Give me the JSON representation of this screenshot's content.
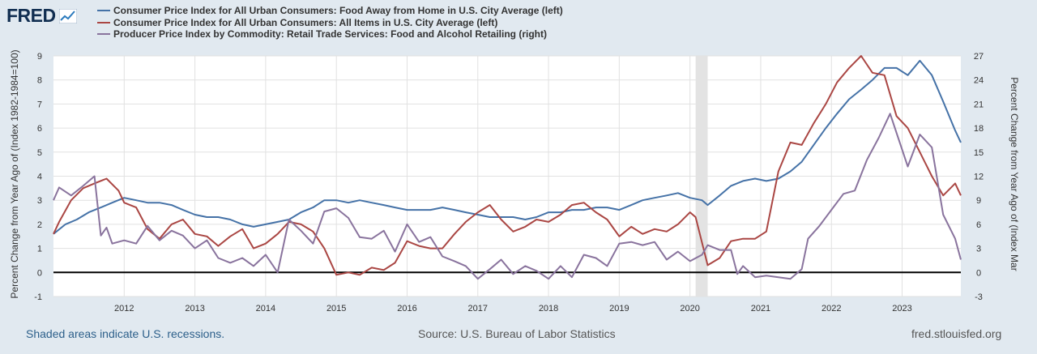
{
  "header": {
    "logo_text": "FRED",
    "logo_icon": "trend-chart-icon"
  },
  "legend": [
    {
      "label": "Consumer Price Index for All Urban Consumers: Food Away from Home in U.S. City Average (left)",
      "color": "#4572a7"
    },
    {
      "label": "Consumer Price Index for All Urban Consumers: All Items in U.S. City Average (left)",
      "color": "#aa4643"
    },
    {
      "label": "Producer Price Index by Commodity: Retail Trade Services: Food and Alcohol Retailing (right)",
      "color": "#89739d"
    }
  ],
  "axes": {
    "left_label": "Percent Change from Year Ago of (Index 1982-1984=100)",
    "right_label": "Percent Change from Year Ago of (Index Mar"
  },
  "footer": {
    "recession_note": "Shaded areas indicate U.S. recessions.",
    "source": "Source: U.S. Bureau of Labor Statistics",
    "link": "fred.stlouisfed.org"
  },
  "chart_data": {
    "type": "line",
    "x_range": [
      2011.0,
      2023.83
    ],
    "x_ticks": [
      "2012",
      "2013",
      "2014",
      "2015",
      "2016",
      "2017",
      "2018",
      "2019",
      "2020",
      "2021",
      "2022",
      "2023"
    ],
    "x_tick_values": [
      2012,
      2013,
      2014,
      2015,
      2016,
      2017,
      2018,
      2019,
      2020,
      2021,
      2022,
      2023
    ],
    "ylim_left": [
      -1,
      9
    ],
    "left_ticks": [
      "-1",
      "0",
      "1",
      "2",
      "3",
      "4",
      "5",
      "6",
      "7",
      "8",
      "9"
    ],
    "ylim_right": [
      -3,
      27
    ],
    "right_ticks": [
      "-3",
      "0",
      "3",
      "6",
      "9",
      "12",
      "15",
      "18",
      "21",
      "24",
      "27"
    ],
    "recessions": [
      [
        2020.08,
        2020.25
      ]
    ],
    "zero_line": 0,
    "series": [
      {
        "name": "Food Away from Home (left)",
        "axis": "left",
        "color": "#4572a7",
        "points": [
          [
            2011.0,
            1.6
          ],
          [
            2011.17,
            2.0
          ],
          [
            2011.33,
            2.2
          ],
          [
            2011.5,
            2.5
          ],
          [
            2011.67,
            2.7
          ],
          [
            2011.83,
            2.9
          ],
          [
            2012.0,
            3.1
          ],
          [
            2012.17,
            3.0
          ],
          [
            2012.33,
            2.9
          ],
          [
            2012.5,
            2.9
          ],
          [
            2012.67,
            2.8
          ],
          [
            2012.83,
            2.6
          ],
          [
            2013.0,
            2.4
          ],
          [
            2013.17,
            2.3
          ],
          [
            2013.33,
            2.3
          ],
          [
            2013.5,
            2.2
          ],
          [
            2013.67,
            2.0
          ],
          [
            2013.83,
            1.9
          ],
          [
            2014.0,
            2.0
          ],
          [
            2014.17,
            2.1
          ],
          [
            2014.33,
            2.2
          ],
          [
            2014.5,
            2.5
          ],
          [
            2014.67,
            2.7
          ],
          [
            2014.83,
            3.0
          ],
          [
            2015.0,
            3.0
          ],
          [
            2015.17,
            2.9
          ],
          [
            2015.33,
            3.0
          ],
          [
            2015.5,
            2.9
          ],
          [
            2015.67,
            2.8
          ],
          [
            2015.83,
            2.7
          ],
          [
            2016.0,
            2.6
          ],
          [
            2016.17,
            2.6
          ],
          [
            2016.33,
            2.6
          ],
          [
            2016.5,
            2.7
          ],
          [
            2016.67,
            2.6
          ],
          [
            2016.83,
            2.5
          ],
          [
            2017.0,
            2.4
          ],
          [
            2017.17,
            2.3
          ],
          [
            2017.33,
            2.3
          ],
          [
            2017.5,
            2.3
          ],
          [
            2017.67,
            2.2
          ],
          [
            2017.83,
            2.3
          ],
          [
            2018.0,
            2.5
          ],
          [
            2018.17,
            2.5
          ],
          [
            2018.33,
            2.6
          ],
          [
            2018.5,
            2.6
          ],
          [
            2018.67,
            2.7
          ],
          [
            2018.83,
            2.7
          ],
          [
            2019.0,
            2.6
          ],
          [
            2019.17,
            2.8
          ],
          [
            2019.33,
            3.0
          ],
          [
            2019.5,
            3.1
          ],
          [
            2019.67,
            3.2
          ],
          [
            2019.83,
            3.3
          ],
          [
            2020.0,
            3.1
          ],
          [
            2020.17,
            3.0
          ],
          [
            2020.25,
            2.8
          ],
          [
            2020.42,
            3.2
          ],
          [
            2020.58,
            3.6
          ],
          [
            2020.75,
            3.8
          ],
          [
            2020.92,
            3.9
          ],
          [
            2021.08,
            3.8
          ],
          [
            2021.25,
            3.9
          ],
          [
            2021.42,
            4.2
          ],
          [
            2021.58,
            4.6
          ],
          [
            2021.75,
            5.3
          ],
          [
            2021.92,
            6.0
          ],
          [
            2022.08,
            6.6
          ],
          [
            2022.25,
            7.2
          ],
          [
            2022.42,
            7.6
          ],
          [
            2022.58,
            8.0
          ],
          [
            2022.75,
            8.5
          ],
          [
            2022.92,
            8.5
          ],
          [
            2023.08,
            8.2
          ],
          [
            2023.25,
            8.8
          ],
          [
            2023.42,
            8.2
          ],
          [
            2023.58,
            7.1
          ],
          [
            2023.75,
            5.9
          ],
          [
            2023.83,
            5.4
          ]
        ]
      },
      {
        "name": "All Items CPI (left)",
        "axis": "left",
        "color": "#aa4643",
        "points": [
          [
            2011.0,
            1.6
          ],
          [
            2011.08,
            2.1
          ],
          [
            2011.25,
            3.0
          ],
          [
            2011.42,
            3.5
          ],
          [
            2011.58,
            3.7
          ],
          [
            2011.75,
            3.9
          ],
          [
            2011.92,
            3.4
          ],
          [
            2012.0,
            2.9
          ],
          [
            2012.17,
            2.7
          ],
          [
            2012.33,
            1.8
          ],
          [
            2012.5,
            1.4
          ],
          [
            2012.67,
            2.0
          ],
          [
            2012.83,
            2.2
          ],
          [
            2013.0,
            1.6
          ],
          [
            2013.17,
            1.5
          ],
          [
            2013.33,
            1.1
          ],
          [
            2013.5,
            1.5
          ],
          [
            2013.67,
            1.8
          ],
          [
            2013.83,
            1.0
          ],
          [
            2014.0,
            1.2
          ],
          [
            2014.17,
            1.6
          ],
          [
            2014.33,
            2.1
          ],
          [
            2014.5,
            2.0
          ],
          [
            2014.67,
            1.7
          ],
          [
            2014.83,
            1.0
          ],
          [
            2015.0,
            -0.1
          ],
          [
            2015.17,
            0.0
          ],
          [
            2015.33,
            -0.1
          ],
          [
            2015.5,
            0.2
          ],
          [
            2015.67,
            0.1
          ],
          [
            2015.83,
            0.4
          ],
          [
            2016.0,
            1.3
          ],
          [
            2016.17,
            1.1
          ],
          [
            2016.33,
            1.0
          ],
          [
            2016.5,
            1.0
          ],
          [
            2016.67,
            1.6
          ],
          [
            2016.83,
            2.1
          ],
          [
            2017.0,
            2.5
          ],
          [
            2017.17,
            2.8
          ],
          [
            2017.33,
            2.2
          ],
          [
            2017.5,
            1.7
          ],
          [
            2017.67,
            1.9
          ],
          [
            2017.83,
            2.2
          ],
          [
            2018.0,
            2.1
          ],
          [
            2018.17,
            2.4
          ],
          [
            2018.33,
            2.8
          ],
          [
            2018.5,
            2.9
          ],
          [
            2018.67,
            2.5
          ],
          [
            2018.83,
            2.2
          ],
          [
            2019.0,
            1.5
          ],
          [
            2019.17,
            1.9
          ],
          [
            2019.33,
            1.6
          ],
          [
            2019.5,
            1.8
          ],
          [
            2019.67,
            1.7
          ],
          [
            2019.83,
            2.0
          ],
          [
            2020.0,
            2.5
          ],
          [
            2020.08,
            2.3
          ],
          [
            2020.25,
            0.3
          ],
          [
            2020.42,
            0.6
          ],
          [
            2020.58,
            1.3
          ],
          [
            2020.75,
            1.4
          ],
          [
            2020.92,
            1.4
          ],
          [
            2021.08,
            1.7
          ],
          [
            2021.25,
            4.2
          ],
          [
            2021.42,
            5.4
          ],
          [
            2021.58,
            5.3
          ],
          [
            2021.75,
            6.2
          ],
          [
            2021.92,
            7.0
          ],
          [
            2022.08,
            7.9
          ],
          [
            2022.25,
            8.5
          ],
          [
            2022.42,
            9.0
          ],
          [
            2022.58,
            8.3
          ],
          [
            2022.75,
            8.2
          ],
          [
            2022.92,
            6.5
          ],
          [
            2023.08,
            6.0
          ],
          [
            2023.25,
            5.0
          ],
          [
            2023.42,
            4.0
          ],
          [
            2023.58,
            3.2
          ],
          [
            2023.75,
            3.7
          ],
          [
            2023.83,
            3.2
          ]
        ]
      },
      {
        "name": "PPI Food and Alcohol Retailing (right)",
        "axis": "right",
        "color": "#89739d",
        "points": [
          [
            2011.0,
            9.0
          ],
          [
            2011.08,
            10.6
          ],
          [
            2011.25,
            9.6
          ],
          [
            2011.42,
            10.8
          ],
          [
            2011.58,
            12.0
          ],
          [
            2011.67,
            4.6
          ],
          [
            2011.75,
            5.6
          ],
          [
            2011.83,
            3.6
          ],
          [
            2012.0,
            4.0
          ],
          [
            2012.17,
            3.6
          ],
          [
            2012.33,
            5.8
          ],
          [
            2012.5,
            4.0
          ],
          [
            2012.67,
            5.2
          ],
          [
            2012.83,
            4.6
          ],
          [
            2013.0,
            3.0
          ],
          [
            2013.17,
            4.0
          ],
          [
            2013.33,
            1.8
          ],
          [
            2013.5,
            1.2
          ],
          [
            2013.67,
            1.8
          ],
          [
            2013.83,
            0.8
          ],
          [
            2014.0,
            2.2
          ],
          [
            2014.17,
            0.0
          ],
          [
            2014.33,
            6.6
          ],
          [
            2014.5,
            5.2
          ],
          [
            2014.67,
            3.6
          ],
          [
            2014.83,
            7.6
          ],
          [
            2015.0,
            8.0
          ],
          [
            2015.17,
            6.8
          ],
          [
            2015.33,
            4.4
          ],
          [
            2015.5,
            4.2
          ],
          [
            2015.67,
            5.2
          ],
          [
            2015.83,
            2.6
          ],
          [
            2016.0,
            6.0
          ],
          [
            2016.17,
            3.8
          ],
          [
            2016.33,
            4.4
          ],
          [
            2016.5,
            2.0
          ],
          [
            2016.67,
            1.4
          ],
          [
            2016.83,
            0.8
          ],
          [
            2017.0,
            -0.8
          ],
          [
            2017.17,
            0.4
          ],
          [
            2017.33,
            1.6
          ],
          [
            2017.5,
            -0.2
          ],
          [
            2017.67,
            0.8
          ],
          [
            2017.83,
            0.2
          ],
          [
            2018.0,
            -0.8
          ],
          [
            2018.17,
            0.8
          ],
          [
            2018.33,
            -0.6
          ],
          [
            2018.5,
            2.2
          ],
          [
            2018.67,
            1.8
          ],
          [
            2018.83,
            0.8
          ],
          [
            2019.0,
            3.6
          ],
          [
            2019.17,
            3.8
          ],
          [
            2019.33,
            3.4
          ],
          [
            2019.5,
            3.8
          ],
          [
            2019.67,
            1.6
          ],
          [
            2019.83,
            2.6
          ],
          [
            2020.0,
            1.4
          ],
          [
            2020.17,
            2.2
          ],
          [
            2020.25,
            3.4
          ],
          [
            2020.42,
            2.8
          ],
          [
            2020.58,
            2.8
          ],
          [
            2020.67,
            -0.2
          ],
          [
            2020.75,
            0.8
          ],
          [
            2020.92,
            -0.6
          ],
          [
            2021.08,
            -0.4
          ],
          [
            2021.25,
            -0.6
          ],
          [
            2021.42,
            -0.8
          ],
          [
            2021.58,
            0.4
          ],
          [
            2021.67,
            4.2
          ],
          [
            2021.83,
            5.8
          ],
          [
            2022.0,
            7.8
          ],
          [
            2022.17,
            9.8
          ],
          [
            2022.33,
            10.2
          ],
          [
            2022.5,
            14.0
          ],
          [
            2022.67,
            16.8
          ],
          [
            2022.83,
            19.8
          ],
          [
            2022.92,
            17.4
          ],
          [
            2023.08,
            13.2
          ],
          [
            2023.25,
            17.2
          ],
          [
            2023.42,
            15.6
          ],
          [
            2023.58,
            7.2
          ],
          [
            2023.75,
            4.2
          ],
          [
            2023.83,
            1.6
          ]
        ]
      }
    ]
  }
}
